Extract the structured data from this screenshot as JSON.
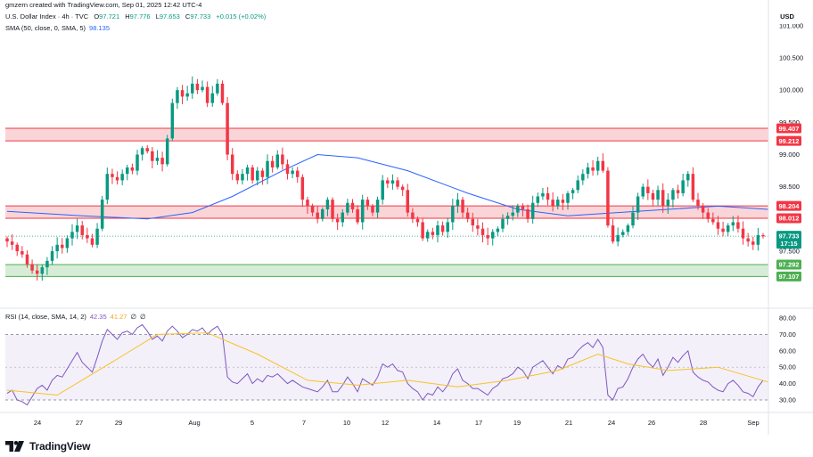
{
  "header": {
    "credit": "gmzern created with TradingView.com, Sep 01, 2025 12:42 UTC-4",
    "symbol": "U.S. Dollar Index · 4h · TVC",
    "open_label": "O",
    "open": "97.721",
    "high_label": "H",
    "high": "97.776",
    "low_label": "L",
    "low": "97.653",
    "close_label": "C",
    "close": "97.733",
    "change": "+0.015 (+0.02%)"
  },
  "sma": {
    "label": "SMA (50, close, 0, SMA, 5)",
    "value": "98.135"
  },
  "currency_button": "USD",
  "price_axis": {
    "ticks": [
      "101.000",
      "100.500",
      "100.000",
      "99.500",
      "99.000",
      "98.500",
      "97.500"
    ],
    "levels": [
      {
        "value": "99.407",
        "kind": "resistance"
      },
      {
        "value": "99.212",
        "kind": "resistance"
      },
      {
        "value": "98.204",
        "kind": "pivot"
      },
      {
        "value": "98.012",
        "kind": "pivot"
      },
      {
        "value": "97.292",
        "kind": "support"
      },
      {
        "value": "97.107",
        "kind": "support"
      }
    ],
    "last_price": "97.733",
    "countdown": "17:15"
  },
  "rsi": {
    "label": "RSI (14, close, SMA, 14, 2)",
    "value": "42.35",
    "ma_value": "41.27",
    "na1": "∅",
    "na2": "∅",
    "ticks": [
      "80.00",
      "70.00",
      "60.00",
      "50.00",
      "40.00",
      "30.00"
    ],
    "upper": 70,
    "lower": 30
  },
  "time_axis": [
    "24",
    "27",
    "29",
    "Aug",
    "5",
    "7",
    "10",
    "12",
    "14",
    "17",
    "19",
    "21",
    "24",
    "26",
    "28",
    "Sep"
  ],
  "brand": "TradingView",
  "colors": {
    "up": "#089981",
    "down": "#f23645",
    "sma": "#2962ff",
    "rsi": "#7e57c2",
    "rsi_ma": "#f7c325",
    "resistance_fill": "#f8c7cb",
    "support_fill": "#c8e6c9"
  },
  "chart_data": {
    "type": "candlestick",
    "interval": "4h",
    "price_range": [
      96.9,
      101.1
    ],
    "closes": [
      97.65,
      97.6,
      97.5,
      97.45,
      97.3,
      97.2,
      97.15,
      97.25,
      97.35,
      97.5,
      97.6,
      97.55,
      97.7,
      97.8,
      97.9,
      97.75,
      97.7,
      97.6,
      97.85,
      98.3,
      98.7,
      98.65,
      98.6,
      98.7,
      98.8,
      98.75,
      99.0,
      99.1,
      99.05,
      98.9,
      98.95,
      98.85,
      99.25,
      99.8,
      100.0,
      99.9,
      99.95,
      100.1,
      100.0,
      100.05,
      99.8,
      99.95,
      100.1,
      99.8,
      99.0,
      98.7,
      98.6,
      98.7,
      98.8,
      98.6,
      98.75,
      98.65,
      98.9,
      98.8,
      99.0,
      98.85,
      98.7,
      98.75,
      98.65,
      98.3,
      98.2,
      98.1,
      98.0,
      98.15,
      98.3,
      98.0,
      97.95,
      98.1,
      98.25,
      98.15,
      97.95,
      98.3,
      98.2,
      98.1,
      98.3,
      98.6,
      98.55,
      98.6,
      98.5,
      98.45,
      98.1,
      98.0,
      97.95,
      97.7,
      97.8,
      97.75,
      97.9,
      97.8,
      97.95,
      98.2,
      98.3,
      98.1,
      98.0,
      97.9,
      97.85,
      97.75,
      97.7,
      97.8,
      97.85,
      98.0,
      98.05,
      98.1,
      98.2,
      98.15,
      98.0,
      98.25,
      98.35,
      98.4,
      98.3,
      98.2,
      98.3,
      98.25,
      98.4,
      98.45,
      98.6,
      98.7,
      98.8,
      98.75,
      98.9,
      98.75,
      97.9,
      97.65,
      97.75,
      97.8,
      97.9,
      98.1,
      98.35,
      98.5,
      98.4,
      98.3,
      98.45,
      98.2,
      98.3,
      98.45,
      98.4,
      98.6,
      98.7,
      98.3,
      98.2,
      98.1,
      98.0,
      97.95,
      97.85,
      97.8,
      97.9,
      97.95,
      97.85,
      97.7,
      97.65,
      97.6,
      97.75,
      97.73
    ],
    "sma50": [
      {
        "i": 0,
        "v": 98.12
      },
      {
        "i": 15,
        "v": 98.05
      },
      {
        "i": 28,
        "v": 98.0
      },
      {
        "i": 37,
        "v": 98.1
      },
      {
        "i": 45,
        "v": 98.35
      },
      {
        "i": 55,
        "v": 98.75
      },
      {
        "i": 62,
        "v": 99.0
      },
      {
        "i": 70,
        "v": 98.95
      },
      {
        "i": 80,
        "v": 98.75
      },
      {
        "i": 92,
        "v": 98.4
      },
      {
        "i": 102,
        "v": 98.15
      },
      {
        "i": 112,
        "v": 98.05
      },
      {
        "i": 122,
        "v": 98.1
      },
      {
        "i": 132,
        "v": 98.15
      },
      {
        "i": 142,
        "v": 98.2
      },
      {
        "i": 152,
        "v": 98.15
      }
    ],
    "rsi_range": [
      25,
      80
    ],
    "rsi": [
      34,
      36,
      30,
      29,
      27,
      32,
      37,
      39,
      36,
      42,
      45,
      44,
      49,
      54,
      59,
      53,
      50,
      47,
      56,
      66,
      73,
      70,
      67,
      71,
      72,
      70,
      74,
      76,
      72,
      67,
      69,
      66,
      72,
      75,
      72,
      68,
      70,
      73,
      72,
      74,
      70,
      73,
      75,
      70,
      44,
      41,
      40,
      43,
      46,
      40,
      43,
      41,
      45,
      44,
      46,
      43,
      40,
      42,
      40,
      38,
      37,
      36,
      35,
      38,
      42,
      35,
      35,
      39,
      44,
      40,
      35,
      43,
      41,
      39,
      44,
      52,
      50,
      52,
      48,
      47,
      40,
      37,
      35,
      30,
      34,
      33,
      38,
      35,
      39,
      46,
      49,
      42,
      40,
      37,
      37,
      35,
      33,
      37,
      39,
      43,
      44,
      46,
      50,
      48,
      43,
      50,
      52,
      54,
      50,
      46,
      51,
      49,
      55,
      56,
      60,
      63,
      65,
      62,
      67,
      62,
      33,
      30,
      37,
      38,
      43,
      50,
      55,
      58,
      53,
      50,
      55,
      45,
      50,
      56,
      53,
      57,
      60,
      47,
      44,
      42,
      41,
      38,
      36,
      35,
      40,
      42,
      39,
      35,
      34,
      32,
      38,
      42
    ],
    "rsi_ma": [
      {
        "i": 0,
        "v": 36
      },
      {
        "i": 10,
        "v": 33
      },
      {
        "i": 22,
        "v": 55
      },
      {
        "i": 30,
        "v": 70
      },
      {
        "i": 40,
        "v": 71
      },
      {
        "i": 50,
        "v": 58
      },
      {
        "i": 60,
        "v": 42
      },
      {
        "i": 70,
        "v": 39
      },
      {
        "i": 80,
        "v": 42
      },
      {
        "i": 90,
        "v": 38
      },
      {
        "i": 100,
        "v": 42
      },
      {
        "i": 110,
        "v": 48
      },
      {
        "i": 118,
        "v": 58
      },
      {
        "i": 124,
        "v": 52
      },
      {
        "i": 132,
        "v": 48
      },
      {
        "i": 142,
        "v": 50
      },
      {
        "i": 152,
        "v": 41
      }
    ]
  }
}
